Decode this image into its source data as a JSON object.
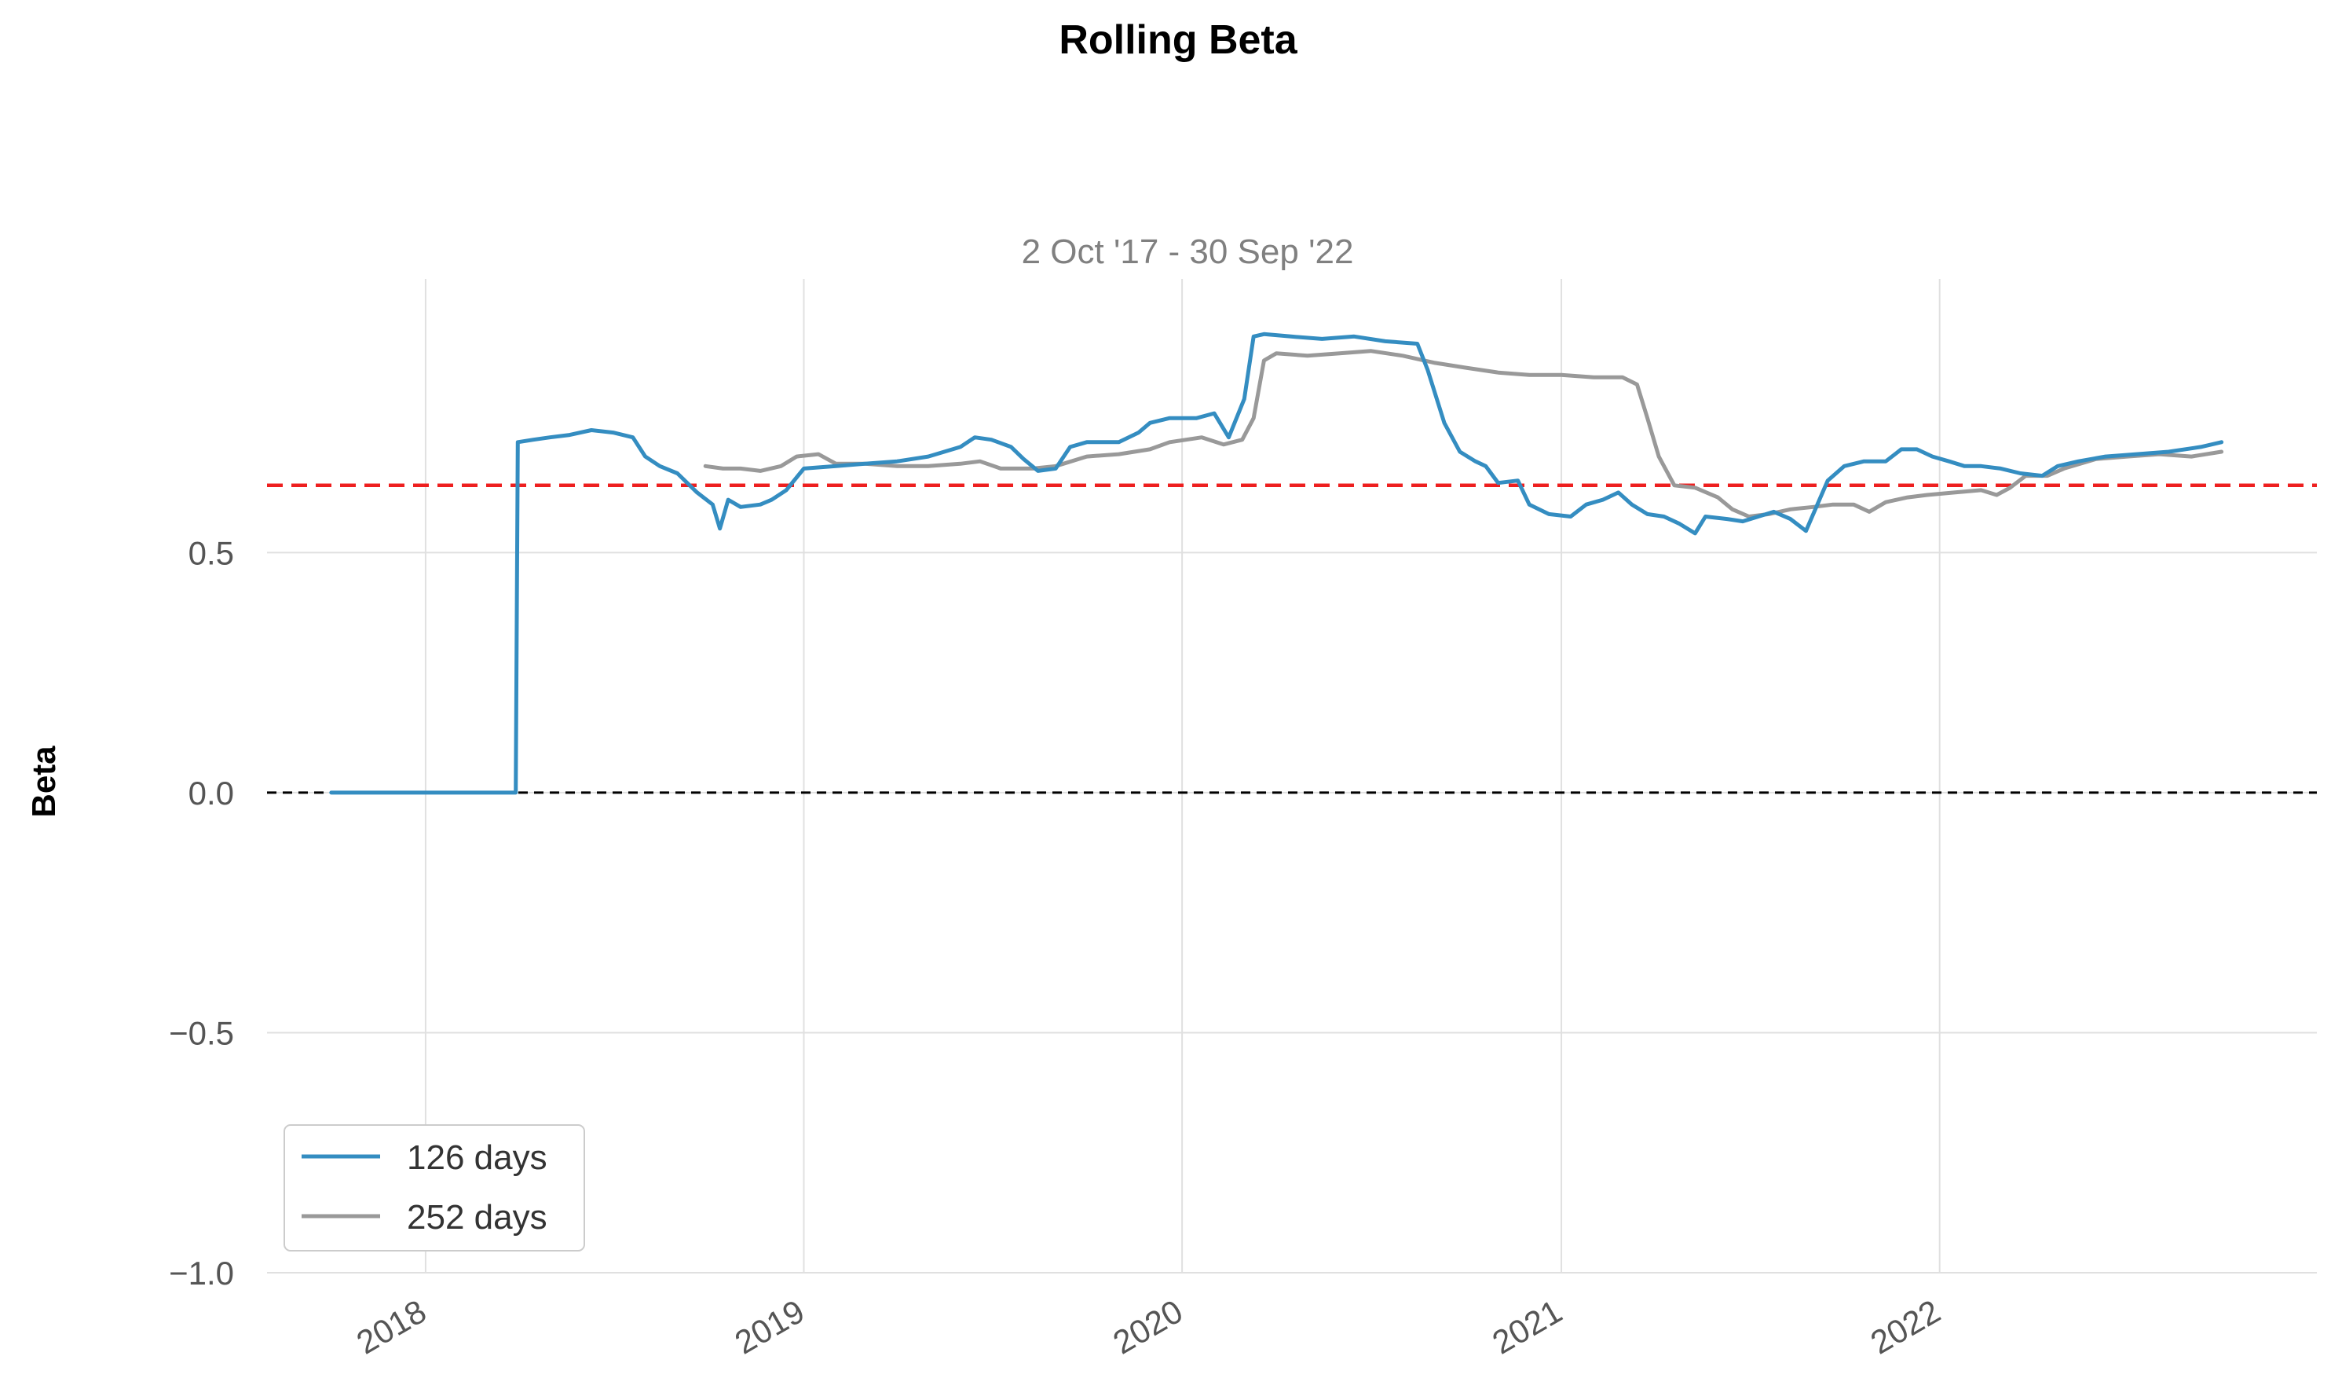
{
  "chart_data": {
    "type": "line",
    "title": "Rolling Beta",
    "subtitle": "2 Oct '17 - 30 Sep '22",
    "xlabel": "",
    "ylabel": "Beta",
    "xlim": [
      "2017-08-01",
      "2022-12-31"
    ],
    "ylim": [
      -1.0,
      1.07
    ],
    "xticks": [
      {
        "date": "2018-01-01",
        "label": "2018"
      },
      {
        "date": "2019-01-01",
        "label": "2019"
      },
      {
        "date": "2020-01-01",
        "label": "2020"
      },
      {
        "date": "2021-01-01",
        "label": "2021"
      },
      {
        "date": "2022-01-01",
        "label": "2022"
      }
    ],
    "yticks": [
      {
        "value": 0.5,
        "label": "0.5"
      },
      {
        "value": 0.0,
        "label": "0.0"
      },
      {
        "value": -0.5,
        "label": "−0.5"
      },
      {
        "value": -1.0,
        "label": "−1.0"
      }
    ],
    "grid": true,
    "legend_position": "lower-left",
    "reference_lines": [
      {
        "value": 0.64,
        "color": "#ee1f1f",
        "style": "dashed"
      },
      {
        "value": 0.0,
        "color": "#000000",
        "style": "dashed"
      }
    ],
    "series": [
      {
        "name": "126 days",
        "color": "#348dc1",
        "points": [
          [
            "2017-10-02",
            0.0
          ],
          [
            "2018-03-29",
            0.0
          ],
          [
            "2018-03-31",
            0.73
          ],
          [
            "2018-04-15",
            0.735
          ],
          [
            "2018-05-01",
            0.74
          ],
          [
            "2018-05-20",
            0.745
          ],
          [
            "2018-06-10",
            0.755
          ],
          [
            "2018-07-01",
            0.75
          ],
          [
            "2018-07-20",
            0.74
          ],
          [
            "2018-08-01",
            0.7
          ],
          [
            "2018-08-15",
            0.68
          ],
          [
            "2018-09-01",
            0.665
          ],
          [
            "2018-09-20",
            0.625
          ],
          [
            "2018-10-05",
            0.6
          ],
          [
            "2018-10-12",
            0.55
          ],
          [
            "2018-10-20",
            0.61
          ],
          [
            "2018-11-01",
            0.595
          ],
          [
            "2018-11-20",
            0.6
          ],
          [
            "2018-12-01",
            0.61
          ],
          [
            "2018-12-15",
            0.63
          ],
          [
            "2019-01-01",
            0.675
          ],
          [
            "2019-02-01",
            0.68
          ],
          [
            "2019-03-01",
            0.685
          ],
          [
            "2019-04-01",
            0.69
          ],
          [
            "2019-05-01",
            0.7
          ],
          [
            "2019-06-01",
            0.72
          ],
          [
            "2019-06-15",
            0.74
          ],
          [
            "2019-07-01",
            0.735
          ],
          [
            "2019-07-20",
            0.72
          ],
          [
            "2019-08-01",
            0.695
          ],
          [
            "2019-08-15",
            0.67
          ],
          [
            "2019-09-01",
            0.675
          ],
          [
            "2019-09-15",
            0.72
          ],
          [
            "2019-10-01",
            0.73
          ],
          [
            "2019-11-01",
            0.73
          ],
          [
            "2019-11-20",
            0.75
          ],
          [
            "2019-12-01",
            0.77
          ],
          [
            "2019-12-20",
            0.78
          ],
          [
            "2020-01-15",
            0.78
          ],
          [
            "2020-02-01",
            0.79
          ],
          [
            "2020-02-15",
            0.74
          ],
          [
            "2020-03-01",
            0.82
          ],
          [
            "2020-03-10",
            0.95
          ],
          [
            "2020-03-20",
            0.955
          ],
          [
            "2020-04-15",
            0.95
          ],
          [
            "2020-05-15",
            0.945
          ],
          [
            "2020-06-15",
            0.95
          ],
          [
            "2020-07-15",
            0.94
          ],
          [
            "2020-08-15",
            0.935
          ],
          [
            "2020-08-25",
            0.88
          ],
          [
            "2020-09-10",
            0.77
          ],
          [
            "2020-09-25",
            0.71
          ],
          [
            "2020-10-10",
            0.69
          ],
          [
            "2020-10-20",
            0.68
          ],
          [
            "2020-11-01",
            0.645
          ],
          [
            "2020-11-20",
            0.65
          ],
          [
            "2020-12-01",
            0.6
          ],
          [
            "2020-12-20",
            0.58
          ],
          [
            "2021-01-10",
            0.575
          ],
          [
            "2021-01-25",
            0.6
          ],
          [
            "2021-02-10",
            0.61
          ],
          [
            "2021-02-25",
            0.625
          ],
          [
            "2021-03-10",
            0.6
          ],
          [
            "2021-03-25",
            0.58
          ],
          [
            "2021-04-10",
            0.575
          ],
          [
            "2021-04-25",
            0.56
          ],
          [
            "2021-05-10",
            0.54
          ],
          [
            "2021-05-20",
            0.575
          ],
          [
            "2021-06-10",
            0.57
          ],
          [
            "2021-06-25",
            0.565
          ],
          [
            "2021-07-10",
            0.575
          ],
          [
            "2021-07-25",
            0.585
          ],
          [
            "2021-08-10",
            0.57
          ],
          [
            "2021-08-25",
            0.545
          ],
          [
            "2021-09-05",
            0.6
          ],
          [
            "2021-09-15",
            0.65
          ],
          [
            "2021-10-01",
            0.68
          ],
          [
            "2021-10-20",
            0.69
          ],
          [
            "2021-11-10",
            0.69
          ],
          [
            "2021-11-25",
            0.715
          ],
          [
            "2021-12-10",
            0.715
          ],
          [
            "2021-12-25",
            0.7
          ],
          [
            "2022-01-10",
            0.69
          ],
          [
            "2022-01-25",
            0.68
          ],
          [
            "2022-02-10",
            0.68
          ],
          [
            "2022-03-01",
            0.675
          ],
          [
            "2022-03-20",
            0.665
          ],
          [
            "2022-04-10",
            0.66
          ],
          [
            "2022-04-25",
            0.68
          ],
          [
            "2022-05-15",
            0.69
          ],
          [
            "2022-06-10",
            0.7
          ],
          [
            "2022-07-10",
            0.705
          ],
          [
            "2022-08-10",
            0.71
          ],
          [
            "2022-09-10",
            0.72
          ],
          [
            "2022-09-30",
            0.73
          ]
        ]
      },
      {
        "name": "252 days",
        "color": "#999999",
        "points": [
          [
            "2018-09-28",
            0.68
          ],
          [
            "2018-10-15",
            0.675
          ],
          [
            "2018-11-01",
            0.675
          ],
          [
            "2018-11-20",
            0.67
          ],
          [
            "2018-12-10",
            0.68
          ],
          [
            "2018-12-25",
            0.7
          ],
          [
            "2019-01-15",
            0.705
          ],
          [
            "2019-02-01",
            0.685
          ],
          [
            "2019-03-01",
            0.685
          ],
          [
            "2019-04-01",
            0.68
          ],
          [
            "2019-05-01",
            0.68
          ],
          [
            "2019-06-01",
            0.685
          ],
          [
            "2019-06-20",
            0.69
          ],
          [
            "2019-07-10",
            0.675
          ],
          [
            "2019-08-10",
            0.675
          ],
          [
            "2019-09-01",
            0.68
          ],
          [
            "2019-10-01",
            0.7
          ],
          [
            "2019-11-01",
            0.705
          ],
          [
            "2019-12-01",
            0.715
          ],
          [
            "2019-12-20",
            0.73
          ],
          [
            "2020-01-20",
            0.74
          ],
          [
            "2020-02-10",
            0.725
          ],
          [
            "2020-02-28",
            0.735
          ],
          [
            "2020-03-10",
            0.78
          ],
          [
            "2020-03-20",
            0.9
          ],
          [
            "2020-04-01",
            0.915
          ],
          [
            "2020-05-01",
            0.91
          ],
          [
            "2020-06-01",
            0.915
          ],
          [
            "2020-07-01",
            0.92
          ],
          [
            "2020-08-01",
            0.91
          ],
          [
            "2020-09-01",
            0.895
          ],
          [
            "2020-10-01",
            0.885
          ],
          [
            "2020-11-01",
            0.875
          ],
          [
            "2020-12-01",
            0.87
          ],
          [
            "2021-01-01",
            0.87
          ],
          [
            "2021-02-01",
            0.865
          ],
          [
            "2021-03-01",
            0.865
          ],
          [
            "2021-03-15",
            0.85
          ],
          [
            "2021-03-25",
            0.78
          ],
          [
            "2021-04-05",
            0.7
          ],
          [
            "2021-04-20",
            0.64
          ],
          [
            "2021-05-10",
            0.635
          ],
          [
            "2021-06-01",
            0.615
          ],
          [
            "2021-06-15",
            0.59
          ],
          [
            "2021-07-01",
            0.575
          ],
          [
            "2021-07-20",
            0.58
          ],
          [
            "2021-08-10",
            0.59
          ],
          [
            "2021-09-01",
            0.595
          ],
          [
            "2021-09-20",
            0.6
          ],
          [
            "2021-10-10",
            0.6
          ],
          [
            "2021-10-25",
            0.585
          ],
          [
            "2021-11-10",
            0.605
          ],
          [
            "2021-12-01",
            0.615
          ],
          [
            "2021-12-20",
            0.62
          ],
          [
            "2022-01-15",
            0.625
          ],
          [
            "2022-02-10",
            0.63
          ],
          [
            "2022-02-25",
            0.62
          ],
          [
            "2022-03-10",
            0.635
          ],
          [
            "2022-03-25",
            0.66
          ],
          [
            "2022-04-15",
            0.66
          ],
          [
            "2022-05-01",
            0.675
          ],
          [
            "2022-06-01",
            0.695
          ],
          [
            "2022-07-01",
            0.7
          ],
          [
            "2022-08-01",
            0.705
          ],
          [
            "2022-09-01",
            0.7
          ],
          [
            "2022-09-30",
            0.71
          ]
        ]
      }
    ]
  }
}
